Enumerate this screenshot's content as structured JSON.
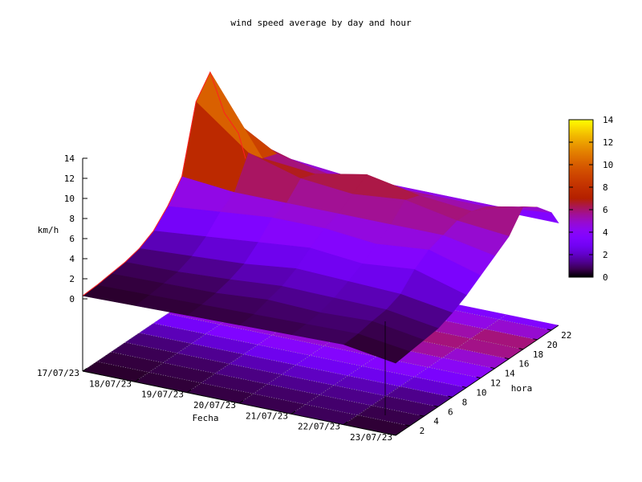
{
  "chart_data": {
    "type": "surface3d",
    "title": "wind speed average by day and hour",
    "xlabel": "Fecha",
    "ylabel": "hora",
    "zlabel": "km/h",
    "x_ticks": [
      "17/07/23",
      "18/07/23",
      "19/07/23",
      "20/07/23",
      "21/07/23",
      "22/07/23",
      "23/07/23"
    ],
    "y_ticks": [
      "2",
      "4",
      "6",
      "8",
      "10",
      "12",
      "14",
      "16",
      "18",
      "20",
      "22"
    ],
    "y_range": [
      0,
      23
    ],
    "z_ticks": [
      "0",
      "2",
      "4",
      "6",
      "8",
      "10",
      "12",
      "14"
    ],
    "zlim": [
      0,
      14
    ],
    "colorbar": {
      "ticks": [
        "0",
        "2",
        "4",
        "6",
        "8",
        "10",
        "12",
        "14"
      ],
      "range": [
        0,
        14
      ]
    },
    "hours": [
      0,
      2,
      4,
      6,
      8,
      10,
      12,
      14,
      16,
      18,
      20,
      22,
      23
    ],
    "days": [
      "17/07/23",
      "18/07/23",
      "19/07/23",
      "20/07/23",
      "21/07/23",
      "22/07/23",
      "23/07/23"
    ],
    "values": [
      [
        0.3,
        0.4,
        0.5,
        0.6,
        0.7,
        0.8,
        0.0
      ],
      [
        0.4,
        0.5,
        0.6,
        0.7,
        0.8,
        0.9,
        0.2
      ],
      [
        0.6,
        0.7,
        0.8,
        1.2,
        1.0,
        1.2,
        0.4
      ],
      [
        0.8,
        0.9,
        1.2,
        1.6,
        1.5,
        1.4,
        0.6
      ],
      [
        1.2,
        1.5,
        1.8,
        2.4,
        2.2,
        2.0,
        1.2
      ],
      [
        2.0,
        2.5,
        3.0,
        3.5,
        3.0,
        3.5,
        2.0
      ],
      [
        3.5,
        4.0,
        4.5,
        4.5,
        4.0,
        4.5,
        3.0
      ],
      [
        5.5,
        5.0,
        5.0,
        5.0,
        5.0,
        5.0,
        4.0
      ],
      [
        12.0,
        8.0,
        6.5,
        6.0,
        6.5,
        5.5,
        5.0
      ],
      [
        14.0,
        6.5,
        6.0,
        7.0,
        6.0,
        5.5,
        7.0
      ],
      [
        9.0,
        6.0,
        5.0,
        5.0,
        5.0,
        5.0,
        6.0
      ],
      [
        6.0,
        4.5,
        4.0,
        4.0,
        4.0,
        4.0,
        4.5
      ],
      [
        3.0,
        3.0,
        3.0,
        3.0,
        3.0,
        3.0,
        3.0
      ]
    ]
  }
}
